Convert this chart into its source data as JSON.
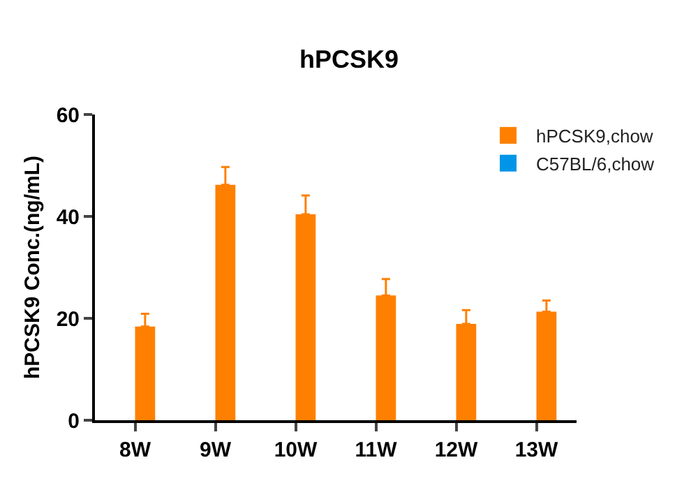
{
  "chart_data": {
    "type": "bar",
    "title": "hPCSK9",
    "ylabel": "hPCSK9 Conc.(ng/mL)",
    "categories": [
      "8W",
      "9W",
      "10W",
      "11W",
      "12W",
      "13W"
    ],
    "series": [
      {
        "name": "hPCSK9,chow",
        "color": "#ff8000",
        "values": [
          18.4,
          46.2,
          40.4,
          24.5,
          18.9,
          21.3
        ],
        "errors": [
          [
            18.4,
            20.9
          ],
          [
            46.2,
            49.7
          ],
          [
            40.4,
            44.1
          ],
          [
            24.5,
            27.7
          ],
          [
            18.9,
            21.6
          ],
          [
            21.3,
            23.5
          ]
        ]
      },
      {
        "name": "C57BL/6,chow",
        "color": "#0095e8",
        "values": [
          null,
          null,
          null,
          null,
          null,
          null
        ]
      }
    ],
    "ylim": [
      0,
      60
    ],
    "yticks": [
      0,
      20,
      40,
      60
    ],
    "grid": false,
    "legend": "top right"
  }
}
